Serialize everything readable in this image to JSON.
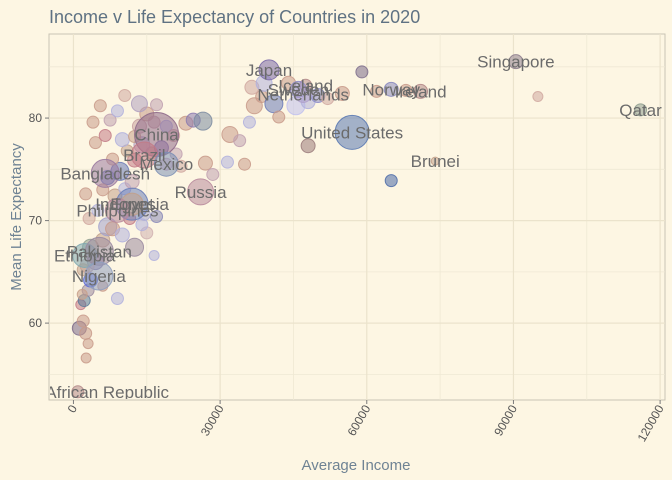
{
  "chart_data": {
    "type": "scatter",
    "title": "Income v Life Expectancy of Countries in 2020",
    "xlabel": "Average Income",
    "ylabel": "Mean Life Expectancy",
    "xlim": [
      -5000,
      121000
    ],
    "ylim": [
      52.5,
      88.2
    ],
    "xticks": [
      0,
      30000,
      60000,
      90000,
      120000
    ],
    "yticks": [
      60,
      70,
      80
    ],
    "grid": true,
    "legend": "none",
    "labeled_points": [
      {
        "label": "Japan",
        "x": 40000,
        "y": 84.7,
        "size": 10,
        "color": "#7b6aa8"
      },
      {
        "label": "Singapore",
        "x": 90500,
        "y": 85.5,
        "size": 7,
        "color": "#8f7f8f"
      },
      {
        "label": "Iceland",
        "x": 47500,
        "y": 83.2,
        "size": 6,
        "color": "#b48a8a"
      },
      {
        "label": "Sweden",
        "x": 46000,
        "y": 82.8,
        "size": 8,
        "color": "#8c8ac8"
      },
      {
        "label": "Netherlands",
        "x": 47000,
        "y": 82.3,
        "size": 8,
        "color": "#b0a2cc"
      },
      {
        "label": "Norway",
        "x": 65000,
        "y": 82.8,
        "size": 7,
        "color": "#8a8ac0"
      },
      {
        "label": "Ireland",
        "x": 71000,
        "y": 82.6,
        "size": 7,
        "color": "#b48a8a"
      },
      {
        "label": "Qatar",
        "x": 116000,
        "y": 80.8,
        "size": 6,
        "color": "#8f9f8f"
      },
      {
        "label": "United States",
        "x": 57000,
        "y": 78.6,
        "size": 17,
        "color": "#5a79b3"
      },
      {
        "label": "China",
        "x": 17000,
        "y": 78.4,
        "size": 22,
        "color": "#8f6a8a"
      },
      {
        "label": "Brazil",
        "x": 14500,
        "y": 76.4,
        "size": 13,
        "color": "#c27a86"
      },
      {
        "label": "Mexico",
        "x": 19000,
        "y": 75.5,
        "size": 12,
        "color": "#7c8fb5"
      },
      {
        "label": "Brunei",
        "x": 74000,
        "y": 75.8,
        "size": 4,
        "color": "#c2a08a"
      },
      {
        "label": "Bangladesh",
        "x": 6500,
        "y": 74.6,
        "size": 14,
        "color": "#9a7aa0"
      },
      {
        "label": "Russia",
        "x": 26000,
        "y": 72.8,
        "size": 13,
        "color": "#b88a9c"
      },
      {
        "label": "Indonesia",
        "x": 12000,
        "y": 71.6,
        "size": 16,
        "color": "#6b7fb8"
      },
      {
        "label": "Egypt",
        "x": 12000,
        "y": 71.6,
        "size": 11,
        "color": "#c2a08a"
      },
      {
        "label": "Philippines",
        "x": 9000,
        "y": 71.0,
        "size": 12,
        "color": "#b88a9c"
      },
      {
        "label": "Ethiopia",
        "x": 2300,
        "y": 66.6,
        "size": 12,
        "color": "#7fa8b0"
      },
      {
        "label": "Pakistan",
        "x": 5300,
        "y": 67.0,
        "size": 14,
        "color": "#9a8aa0"
      },
      {
        "label": "Nigeria",
        "x": 5200,
        "y": 64.6,
        "size": 14,
        "color": "#8f9fbf"
      },
      {
        "label": "Central African Republic",
        "x": 900,
        "y": 53.3,
        "size": 6,
        "color": "#b48a8a"
      }
    ],
    "points": [
      [
        1200,
        59.5,
        7,
        "#7b6a8a"
      ],
      [
        2000,
        60.2,
        6,
        "#c89a8a"
      ],
      [
        2500,
        59.0,
        6,
        "#c89a8a"
      ],
      [
        1500,
        61.8,
        5,
        "#c27a86"
      ],
      [
        2200,
        62.2,
        6,
        "#5a7a99"
      ],
      [
        3000,
        63.2,
        6,
        "#9a8aa0"
      ],
      [
        3500,
        64.2,
        7,
        "#5a6ad8"
      ],
      [
        4500,
        66.0,
        8,
        "#8a7aa0"
      ],
      [
        1800,
        62.8,
        5,
        "#c8a08a"
      ],
      [
        9000,
        62.4,
        6,
        "#b0b0dd"
      ],
      [
        2800,
        65.6,
        7,
        "#c0a0a0"
      ],
      [
        3500,
        67.4,
        8,
        "#8f9f8f"
      ],
      [
        6000,
        68.1,
        7,
        "#c2a08a"
      ],
      [
        7000,
        69.4,
        9,
        "#a0a0cc"
      ],
      [
        8000,
        69.2,
        7,
        "#c89a8a"
      ],
      [
        10000,
        68.6,
        7,
        "#b0b0dd"
      ],
      [
        12500,
        67.4,
        9,
        "#9a8aa0"
      ],
      [
        15000,
        68.8,
        6,
        "#d0b0b0"
      ],
      [
        14500,
        70.6,
        6,
        "#a8a8d0"
      ],
      [
        17000,
        70.4,
        6,
        "#8a8ab8"
      ],
      [
        3200,
        70.2,
        6,
        "#d0a8a0"
      ],
      [
        5000,
        71.0,
        6,
        "#b0b0dd"
      ],
      [
        8500,
        72.4,
        7,
        "#c2a08a"
      ],
      [
        10500,
        73.1,
        6,
        "#b0b0dd"
      ],
      [
        12000,
        73.8,
        7,
        "#c0a0b0"
      ],
      [
        7000,
        74.2,
        7,
        "#6a7ab8"
      ],
      [
        9500,
        74.8,
        9,
        "#6a7ab8"
      ],
      [
        12500,
        75.9,
        7,
        "#c27a86"
      ],
      [
        16000,
        76.6,
        6,
        "#c89a8a"
      ],
      [
        14000,
        77.4,
        8,
        "#b0a0c0"
      ],
      [
        18000,
        77.1,
        7,
        "#8a7ab0"
      ],
      [
        21000,
        76.5,
        6,
        "#c0a0b0"
      ],
      [
        22000,
        75.3,
        6,
        "#d0a8a0"
      ],
      [
        11000,
        76.8,
        6,
        "#c2a08a"
      ],
      [
        10000,
        77.9,
        7,
        "#b0b0dd"
      ],
      [
        12500,
        78.2,
        6,
        "#c8a08a"
      ],
      [
        13500,
        79.2,
        7,
        "#c8a0a0"
      ],
      [
        15000,
        80.4,
        7,
        "#c89a8a"
      ],
      [
        16500,
        79.6,
        6,
        "#c8a0a0"
      ],
      [
        19000,
        79.2,
        6,
        "#b0b0dd"
      ],
      [
        20500,
        78.3,
        6,
        "#d0a8a0"
      ],
      [
        23000,
        79.5,
        7,
        "#c89a8a"
      ],
      [
        24500,
        79.8,
        7,
        "#8a7ab0"
      ],
      [
        26500,
        79.7,
        9,
        "#7a8aa0"
      ],
      [
        27000,
        75.6,
        7,
        "#c89a8a"
      ],
      [
        28500,
        74.5,
        6,
        "#c0a0b0"
      ],
      [
        31500,
        75.7,
        6,
        "#b0b0dd"
      ],
      [
        32000,
        78.4,
        8,
        "#c89a8a"
      ],
      [
        34000,
        77.8,
        6,
        "#c0a0b0"
      ],
      [
        35000,
        75.5,
        6,
        "#c89a8a"
      ],
      [
        36000,
        79.6,
        6,
        "#b0b0dd"
      ],
      [
        37000,
        81.2,
        8,
        "#c89a8a"
      ],
      [
        38500,
        82.1,
        6,
        "#c89a8a"
      ],
      [
        36500,
        83.0,
        7,
        "#d0a8a0"
      ],
      [
        39000,
        83.4,
        8,
        "#b0b0dd"
      ],
      [
        41000,
        81.4,
        9,
        "#6a7ab8"
      ],
      [
        42000,
        80.1,
        6,
        "#c89a8a"
      ],
      [
        44000,
        83.4,
        7,
        "#c89a8a"
      ],
      [
        45500,
        81.2,
        9,
        "#c0c0ee"
      ],
      [
        48000,
        81.6,
        7,
        "#b0b0dd"
      ],
      [
        48000,
        77.3,
        7,
        "#9a7a7a"
      ],
      [
        50000,
        82.2,
        7,
        "#8a8ac8"
      ],
      [
        52000,
        81.9,
        6,
        "#d0a8a0"
      ],
      [
        55000,
        82.4,
        7,
        "#c89a8a"
      ],
      [
        59000,
        84.5,
        6,
        "#7a6a8a"
      ],
      [
        62000,
        82.6,
        6,
        "#c89a8a"
      ],
      [
        65000,
        73.9,
        6,
        "#4a6aa8"
      ],
      [
        68000,
        82.7,
        6,
        "#c89a8a"
      ],
      [
        95000,
        82.1,
        5,
        "#d0a8a0"
      ],
      [
        4000,
        79.6,
        6,
        "#c89a8a"
      ],
      [
        5500,
        81.2,
        6,
        "#c89a8a"
      ],
      [
        4500,
        77.6,
        6,
        "#c89a8a"
      ],
      [
        7500,
        79.8,
        6,
        "#c0a0b0"
      ],
      [
        9000,
        80.7,
        6,
        "#b0b0dd"
      ],
      [
        10500,
        82.2,
        6,
        "#d0a8a0"
      ],
      [
        13500,
        81.4,
        8,
        "#b0a0c0"
      ],
      [
        17000,
        81.3,
        6,
        "#c0a0b0"
      ],
      [
        19000,
        75.5,
        6,
        "#d0a0b0"
      ],
      [
        6500,
        78.3,
        6,
        "#c27a86"
      ],
      [
        8000,
        76.0,
        6,
        "#c89a8a"
      ],
      [
        2500,
        72.6,
        6,
        "#c89a8a"
      ],
      [
        6000,
        73.0,
        6,
        "#c89a8a"
      ],
      [
        11500,
        70.2,
        6,
        "#c27a86"
      ],
      [
        14000,
        69.6,
        6,
        "#b0b0dd"
      ],
      [
        3000,
        58.0,
        5,
        "#c89a8a"
      ],
      [
        2600,
        56.6,
        5,
        "#c89a8a"
      ],
      [
        16500,
        66.6,
        5,
        "#b0b0dd"
      ],
      [
        6000,
        63.6,
        5,
        "#c89a8a"
      ],
      [
        2000,
        65.2,
        6,
        "#c2a08a"
      ]
    ]
  }
}
